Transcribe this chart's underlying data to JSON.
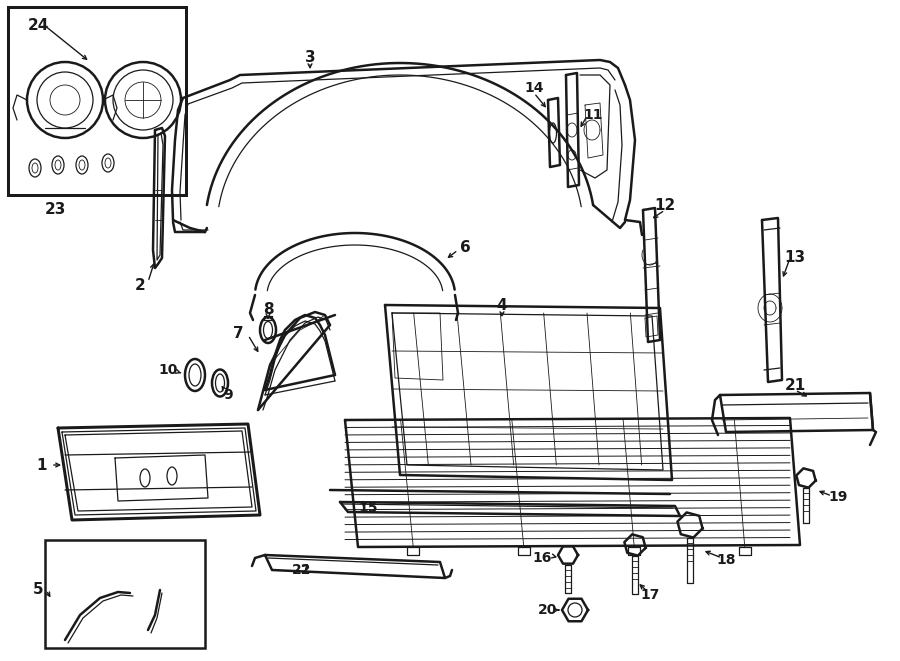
{
  "bg_color": "#ffffff",
  "line_color": "#1a1a1a",
  "lw_main": 1.8,
  "lw_inner": 0.9,
  "lw_fine": 0.6,
  "font_size_label": 11,
  "font_size_sm": 10
}
